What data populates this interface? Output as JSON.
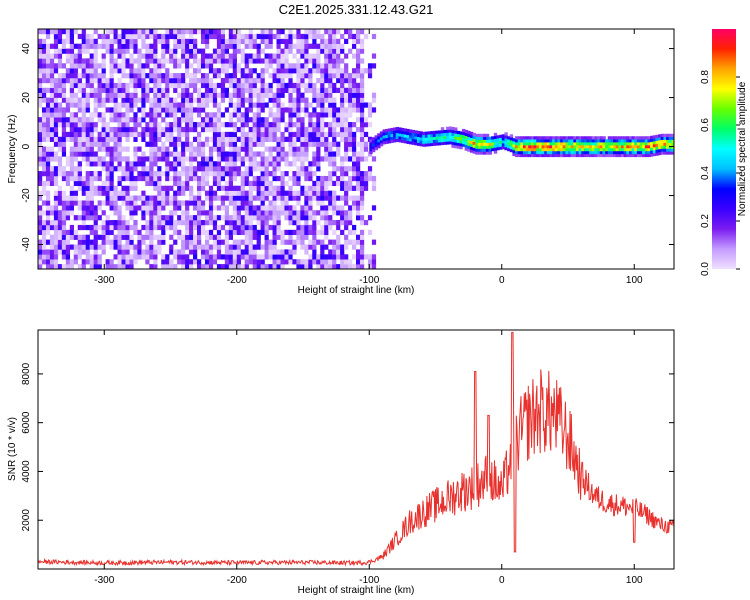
{
  "title": "C2E1.2025.331.12.43.G21",
  "chart_data": [
    {
      "type": "heatmap",
      "name": "spectrogram",
      "xlabel": "Height of straight line (km)",
      "ylabel": "Frequency (Hz)",
      "xlim": [
        -350,
        130
      ],
      "ylim": [
        -50,
        48
      ],
      "xticks": [
        -300,
        -200,
        -100,
        0,
        100
      ],
      "yticks": [
        -40,
        -20,
        0,
        20,
        40
      ],
      "colorbar": {
        "label": "Normalized spectral amplitude",
        "range": [
          0.0,
          1.0
        ],
        "ticks": [
          "0.0",
          "0.2",
          "0.4",
          "0.6",
          "0.8"
        ],
        "colors": [
          "#f0e0ff",
          "#c49cff",
          "#7b1cf0",
          "#3a00ff",
          "#0000ff",
          "#00bfff",
          "#00ffff",
          "#00ff66",
          "#66ff00",
          "#ffff00",
          "#ffa500",
          "#ff2200",
          "#ff0066"
        ]
      },
      "noise_region": {
        "x_from": -350,
        "x_to": -95,
        "level": 0.15
      },
      "signal_track": {
        "x": [
          -100,
          -90,
          -80,
          -60,
          -40,
          -30,
          -20,
          -10,
          0,
          10,
          20,
          40,
          60,
          80,
          100,
          110,
          120,
          130
        ],
        "freq_hz": [
          0,
          4,
          5,
          3,
          4,
          3,
          1,
          1,
          2,
          0,
          0,
          0,
          0,
          0,
          0,
          0,
          1,
          1
        ],
        "amplitude": [
          0.35,
          0.4,
          0.45,
          0.5,
          0.6,
          0.7,
          0.85,
          0.75,
          0.5,
          0.8,
          0.95,
          0.9,
          0.85,
          0.8,
          0.85,
          0.9,
          0.85,
          0.8
        ]
      }
    },
    {
      "type": "line",
      "name": "snr",
      "xlabel": "Height of straight line (km)",
      "ylabel": "SNR (10 * v/v)",
      "xlim": [
        -350,
        130
      ],
      "ylim": [
        0,
        9800
      ],
      "xticks": [
        -300,
        -200,
        -100,
        0,
        100
      ],
      "yticks": [
        2000,
        4000,
        6000,
        8000
      ],
      "color": "#e8302c",
      "x": [
        -350,
        -300,
        -250,
        -200,
        -150,
        -110,
        -100,
        -90,
        -80,
        -70,
        -60,
        -50,
        -40,
        -30,
        -20,
        -10,
        0,
        10,
        20,
        30,
        40,
        50,
        60,
        70,
        80,
        90,
        100,
        110,
        120,
        130
      ],
      "y": [
        300,
        250,
        280,
        260,
        270,
        250,
        280,
        500,
        1200,
        1900,
        2300,
        2600,
        2900,
        3200,
        3400,
        3800,
        3200,
        5100,
        6100,
        6500,
        6300,
        5400,
        3800,
        3000,
        2700,
        2600,
        2500,
        2200,
        1800,
        1700
      ],
      "spikes": [
        [
          -20,
          8100
        ],
        [
          -10,
          6300
        ],
        [
          8,
          9700
        ]
      ],
      "dips": [
        [
          10,
          700
        ],
        [
          100,
          1100
        ]
      ]
    }
  ]
}
